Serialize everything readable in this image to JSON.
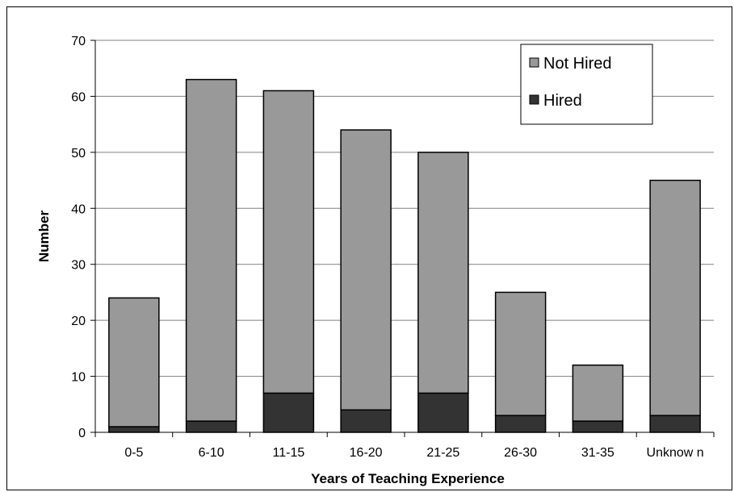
{
  "chart_data": {
    "type": "bar",
    "stacked": true,
    "categories": [
      "0-5",
      "6-10",
      "11-15",
      "16-20",
      "21-25",
      "26-30",
      "31-35",
      "Unknow n"
    ],
    "series": [
      {
        "name": "Hired",
        "values": [
          1,
          2,
          7,
          4,
          7,
          3,
          2,
          3
        ],
        "color": "#333333"
      },
      {
        "name": "Not Hired",
        "values": [
          23,
          61,
          54,
          50,
          43,
          22,
          10,
          42
        ],
        "color": "#999999"
      }
    ],
    "totals": [
      24,
      63,
      61,
      54,
      50,
      25,
      12,
      45
    ],
    "xlabel": "Years of Teaching Experience",
    "ylabel": "Number",
    "ylim": [
      0,
      70
    ],
    "yticks": [
      0,
      10,
      20,
      30,
      40,
      50,
      60,
      70
    ],
    "grid": true,
    "legend": {
      "position": "top-right",
      "entries": [
        {
          "label": "Not Hired",
          "color": "#999999"
        },
        {
          "label": "Hired",
          "color": "#333333"
        }
      ]
    }
  }
}
